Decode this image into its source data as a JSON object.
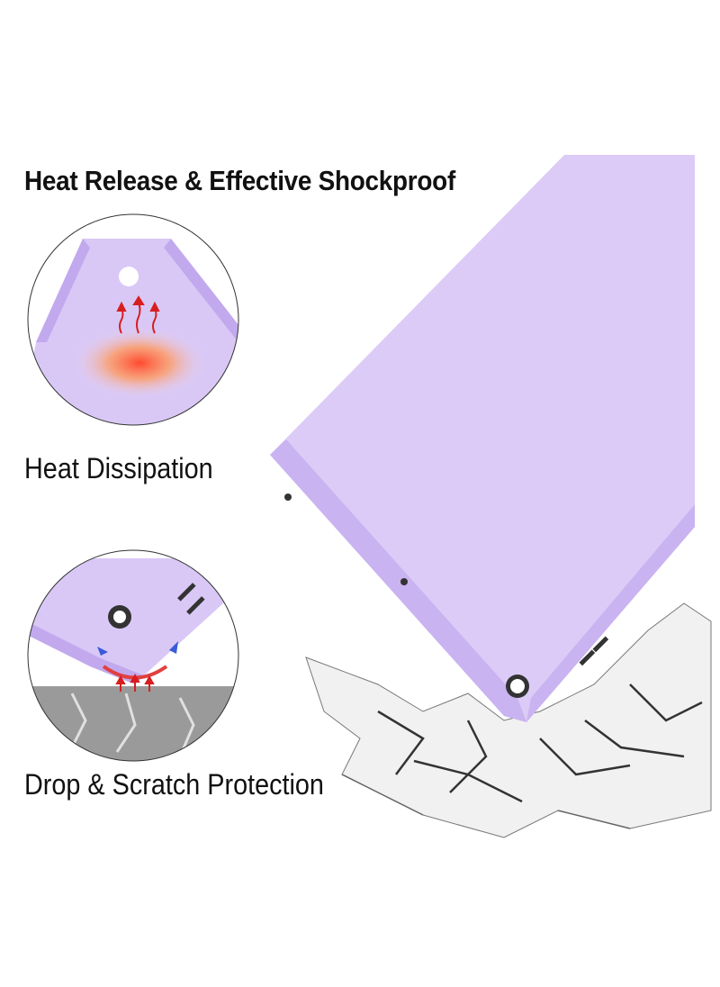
{
  "headline": "Heat Release & Effective Shockproof",
  "features": [
    {
      "label": "Heat Dissipation",
      "icon": "heat-arrows-icon"
    },
    {
      "label": "Drop & Scratch Protection",
      "icon": "impact-arrows-icon"
    }
  ],
  "colors": {
    "case": "#dccbf7",
    "case_edge": "#c7b0ef",
    "heat": "#ff5a3c",
    "arrow": "#d81e1e",
    "ground": "#9a9a9a"
  }
}
